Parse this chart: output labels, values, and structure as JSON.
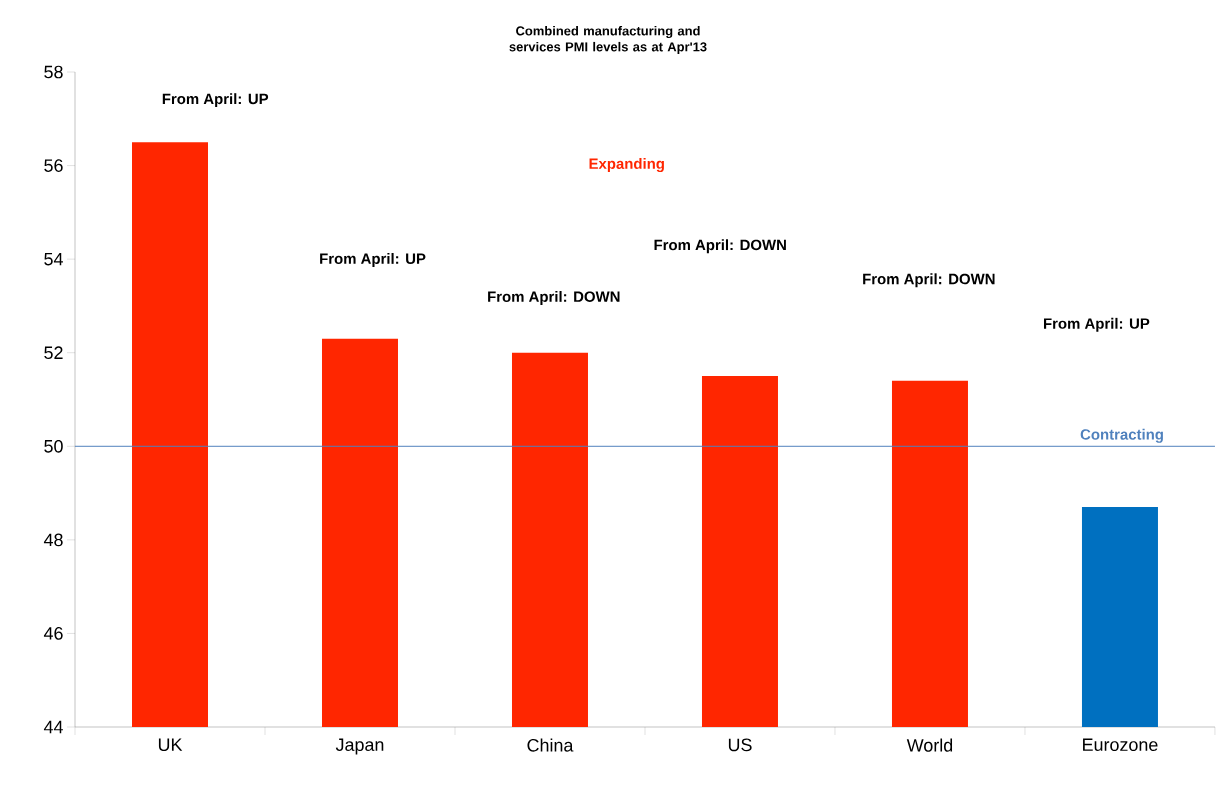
{
  "chart_data": {
    "type": "bar",
    "title": "Combined manufacturing and services PMI levels as at Apr'13",
    "categories": [
      "UK",
      "Japan",
      "China",
      "US",
      "World",
      "Eurozone"
    ],
    "values": [
      56.5,
      52.3,
      52.0,
      51.5,
      51.4,
      48.7
    ],
    "colors": [
      "#ff2600",
      "#ff2600",
      "#ff2600",
      "#ff2600",
      "#ff2600",
      "#0070c0"
    ],
    "ylim": [
      44,
      58
    ],
    "yticks": [
      44,
      46,
      48,
      50,
      52,
      54,
      56,
      58
    ],
    "ref_lines": [
      {
        "axis": "y",
        "value": 50,
        "label": "Contracting",
        "color": "#4f81bd"
      }
    ],
    "annotations": [
      "From April: UP",
      "From April: UP",
      "From April: DOWN",
      "From April: DOWN",
      "From April: DOWN",
      "From April: UP",
      "Expanding"
    ]
  }
}
